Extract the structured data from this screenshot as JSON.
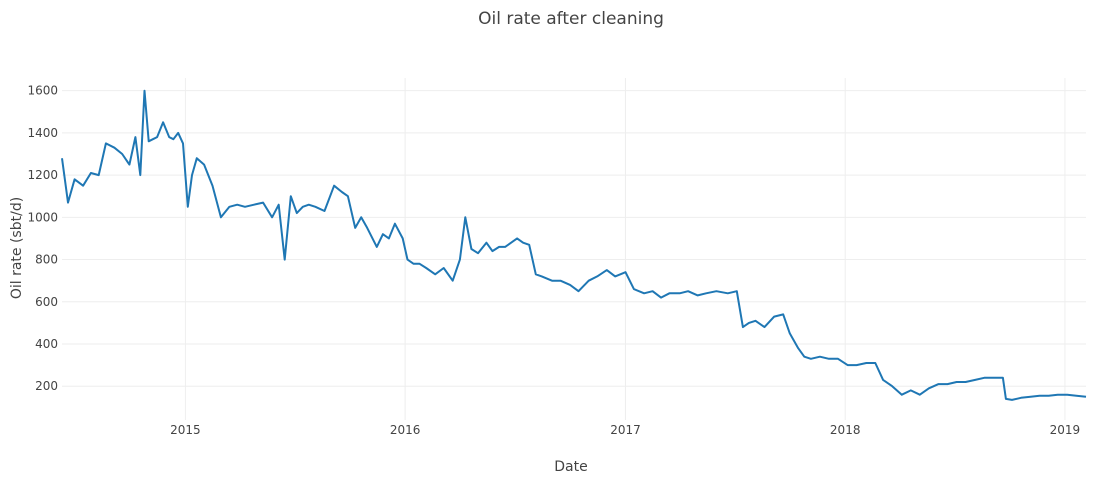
{
  "chart_data": {
    "type": "line",
    "title": "Oil rate after cleaning",
    "xlabel": "Date",
    "ylabel": "Oil rate (sbt/d)",
    "x_tick_labels": [
      "2015",
      "2016",
      "2017",
      "2018",
      "2019"
    ],
    "y_tick_labels": [
      "200",
      "400",
      "600",
      "800",
      "1000",
      "1200",
      "1400",
      "1600"
    ],
    "xlim": [
      "2014-06-10",
      "2019-02-05"
    ],
    "ylim": [
      40,
      1660
    ],
    "grid": true,
    "legend": "none",
    "colors": {
      "series": "#1f77b4",
      "grid": "#eeeeee",
      "text": "#444444"
    },
    "series": [
      {
        "x": [
          "2014-06-10",
          "2014-06-20",
          "2014-07-01",
          "2014-07-15",
          "2014-07-28",
          "2014-08-10",
          "2014-08-22",
          "2014-09-05",
          "2014-09-18",
          "2014-09-30",
          "2014-10-10",
          "2014-10-18",
          "2014-10-25",
          "2014-11-01",
          "2014-11-08",
          "2014-11-15",
          "2014-11-25",
          "2014-12-05",
          "2014-12-12",
          "2014-12-20",
          "2014-12-28",
          "2015-01-05",
          "2015-01-12",
          "2015-01-20",
          "2015-02-01",
          "2015-02-15",
          "2015-03-01",
          "2015-03-15",
          "2015-03-28",
          "2015-04-10",
          "2015-04-25",
          "2015-05-10",
          "2015-05-25",
          "2015-06-05",
          "2015-06-15",
          "2015-06-25",
          "2015-07-05",
          "2015-07-15",
          "2015-07-25",
          "2015-08-05",
          "2015-08-20",
          "2015-09-05",
          "2015-09-18",
          "2015-09-28",
          "2015-10-10",
          "2015-10-20",
          "2015-10-30",
          "2015-11-15",
          "2015-11-25",
          "2015-12-05",
          "2015-12-15",
          "2015-12-28",
          "2016-01-05",
          "2016-01-15",
          "2016-01-25",
          "2016-02-05",
          "2016-02-20",
          "2016-03-05",
          "2016-03-20",
          "2016-04-01",
          "2016-04-10",
          "2016-04-20",
          "2016-05-01",
          "2016-05-15",
          "2016-05-25",
          "2016-06-05",
          "2016-06-15",
          "2016-06-25",
          "2016-07-05",
          "2016-07-15",
          "2016-07-25",
          "2016-08-05",
          "2016-08-15",
          "2016-09-01",
          "2016-09-15",
          "2016-10-01",
          "2016-10-15",
          "2016-11-01",
          "2016-11-15",
          "2016-12-01",
          "2016-12-15",
          "2017-01-01",
          "2017-01-15",
          "2017-02-01",
          "2017-02-15",
          "2017-03-01",
          "2017-03-15",
          "2017-04-01",
          "2017-04-15",
          "2017-05-01",
          "2017-05-15",
          "2017-06-01",
          "2017-06-20",
          "2017-07-05",
          "2017-07-15",
          "2017-07-25",
          "2017-08-05",
          "2017-08-20",
          "2017-09-05",
          "2017-09-20",
          "2017-10-01",
          "2017-10-15",
          "2017-10-25",
          "2017-11-05",
          "2017-11-20",
          "2017-12-05",
          "2017-12-20",
          "2018-01-05",
          "2018-01-20",
          "2018-02-05",
          "2018-02-20",
          "2018-03-05",
          "2018-03-20",
          "2018-04-05",
          "2018-04-20",
          "2018-05-05",
          "2018-05-20",
          "2018-06-05",
          "2018-06-20",
          "2018-07-05",
          "2018-07-20",
          "2018-08-05",
          "2018-08-20",
          "2018-09-05",
          "2018-09-20",
          "2018-09-25",
          "2018-10-05",
          "2018-10-20",
          "2018-11-05",
          "2018-11-20",
          "2018-12-05",
          "2018-12-20",
          "2019-01-05",
          "2019-01-20",
          "2019-02-05"
        ],
        "y": [
          1280,
          1070,
          1180,
          1150,
          1210,
          1200,
          1350,
          1330,
          1300,
          1250,
          1380,
          1200,
          1600,
          1360,
          1370,
          1380,
          1450,
          1380,
          1370,
          1400,
          1350,
          1050,
          1200,
          1280,
          1250,
          1150,
          1000,
          1050,
          1060,
          1050,
          1060,
          1070,
          1000,
          1060,
          800,
          1100,
          1020,
          1050,
          1060,
          1050,
          1030,
          1150,
          1120,
          1100,
          950,
          1000,
          950,
          860,
          920,
          900,
          970,
          900,
          800,
          780,
          780,
          760,
          730,
          760,
          700,
          800,
          1000,
          850,
          830,
          880,
          840,
          860,
          860,
          880,
          900,
          880,
          870,
          730,
          720,
          700,
          700,
          680,
          650,
          700,
          720,
          750,
          720,
          740,
          660,
          640,
          650,
          620,
          640,
          640,
          650,
          630,
          640,
          650,
          640,
          650,
          480,
          500,
          510,
          480,
          530,
          540,
          450,
          380,
          340,
          330,
          340,
          330,
          330,
          300,
          300,
          310,
          310,
          230,
          200,
          160,
          180,
          160,
          190,
          210,
          210,
          220,
          220,
          230,
          240,
          240,
          240,
          140,
          135,
          145,
          150,
          155,
          155,
          160,
          160,
          155,
          150
        ]
      }
    ]
  }
}
